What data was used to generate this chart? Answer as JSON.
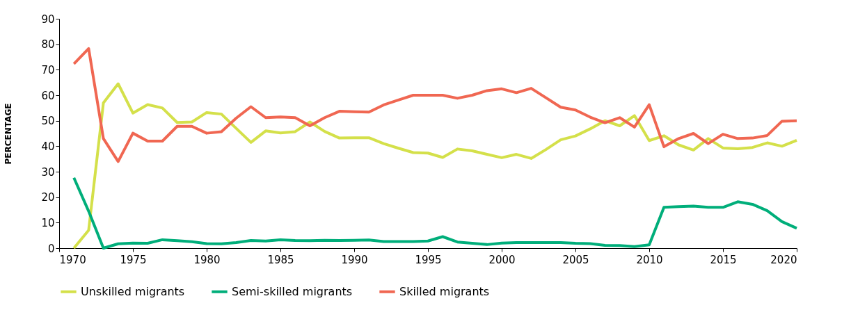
{
  "chart_data": {
    "type": "line",
    "ylabel": "PERCENTAGE",
    "x": [
      1971,
      1972,
      1973,
      1974,
      1975,
      1976,
      1977,
      1978,
      1979,
      1980,
      1981,
      1982,
      1983,
      1984,
      1985,
      1986,
      1987,
      1988,
      1989,
      1990,
      1991,
      1992,
      1993,
      1994,
      1995,
      1996,
      1997,
      1998,
      1999,
      2000,
      2001,
      2002,
      2003,
      2004,
      2005,
      2006,
      2007,
      2008,
      2009,
      2010,
      2011,
      2012,
      2013,
      2014,
      2015,
      2016,
      2017,
      2018,
      2019,
      2020
    ],
    "series": [
      {
        "name": "Unskilled migrants",
        "color": "#d4e04a",
        "values": [
          0,
          7,
          57,
          64.5,
          53,
          56.3,
          55,
          49.3,
          49.5,
          53.2,
          52.6,
          47,
          41.5,
          46,
          45.2,
          45.7,
          49.5,
          45.8,
          43.2,
          43.3,
          43.3,
          41,
          39.2,
          37.5,
          37.3,
          35.6,
          38.9,
          38.2,
          36.8,
          35.5,
          36.8,
          35.2,
          38.7,
          42.5,
          44,
          46.8,
          50,
          48,
          52,
          42.2,
          44.1,
          40.5,
          38.5,
          43,
          39.3,
          39,
          39.5,
          41.3,
          40,
          42.3
        ]
      },
      {
        "name": "Semi-skilled migrants",
        "color": "#00ae7a",
        "values": [
          27.6,
          14.5,
          0,
          1.7,
          2,
          1.9,
          3.3,
          2.9,
          2.5,
          1.8,
          1.7,
          2.2,
          3,
          2.8,
          3.3,
          3,
          2.9,
          3.1,
          3,
          3.1,
          3.2,
          2.6,
          2.6,
          2.6,
          2.8,
          4.5,
          2.4,
          1.9,
          1.4,
          2,
          2.2,
          2.2,
          2.2,
          2.2,
          1.9,
          1.8,
          1.1,
          1,
          0.6,
          1.3,
          16,
          16.3,
          16.5,
          16,
          16,
          18.2,
          17.2,
          14.7,
          10.4,
          7.8
        ]
      },
      {
        "name": "Skilled migrants",
        "color": "#f06752",
        "values": [
          72.3,
          78.3,
          43,
          34,
          45.1,
          42,
          42,
          47.8,
          47.8,
          45.1,
          45.7,
          51,
          55.5,
          51.2,
          51.5,
          51.2,
          48,
          51.2,
          53.7,
          53.5,
          53.4,
          56.2,
          58.1,
          60,
          60,
          60,
          58.8,
          60,
          61.8,
          62.5,
          61,
          62.7,
          59,
          55.3,
          54.2,
          51.4,
          49.2,
          51.2,
          47.5,
          56.3,
          39.8,
          43,
          45,
          41,
          44.7,
          43,
          43.2,
          44.2,
          49.8,
          50
        ]
      }
    ],
    "xlim": [
      1970,
      2020
    ],
    "xticks": [
      1970,
      1975,
      1980,
      1985,
      1990,
      1995,
      2000,
      2005,
      2010,
      2015,
      2020
    ],
    "ylim": [
      0,
      90
    ],
    "yticks": [
      0,
      10,
      20,
      30,
      40,
      50,
      60,
      70,
      80,
      90
    ],
    "grid": false,
    "legend": "bottom left",
    "marker": "none",
    "line_style": "solid"
  }
}
